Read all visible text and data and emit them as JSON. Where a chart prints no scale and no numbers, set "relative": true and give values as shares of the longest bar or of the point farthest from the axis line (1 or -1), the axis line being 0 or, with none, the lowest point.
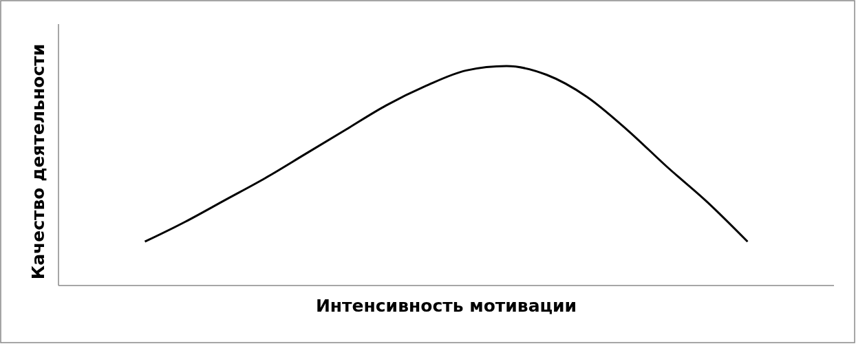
{
  "chart_data": {
    "type": "line",
    "relative": true,
    "xlabel": "Интенсивность мотивации",
    "ylabel": "Качество деятельности",
    "categories": [
      null,
      null,
      null,
      null,
      null,
      null,
      null,
      null,
      null,
      null,
      null,
      null,
      null,
      null,
      null,
      null
    ],
    "series": [
      {
        "color": "#000000",
        "values": [
          0.2,
          0.29,
          0.39,
          0.49,
          0.6,
          0.71,
          0.82,
          0.91,
          0.98,
          1,
          0.96,
          0.86,
          0.71,
          0.54,
          0.38,
          0.2
        ]
      }
    ],
    "marker": "none"
  }
}
